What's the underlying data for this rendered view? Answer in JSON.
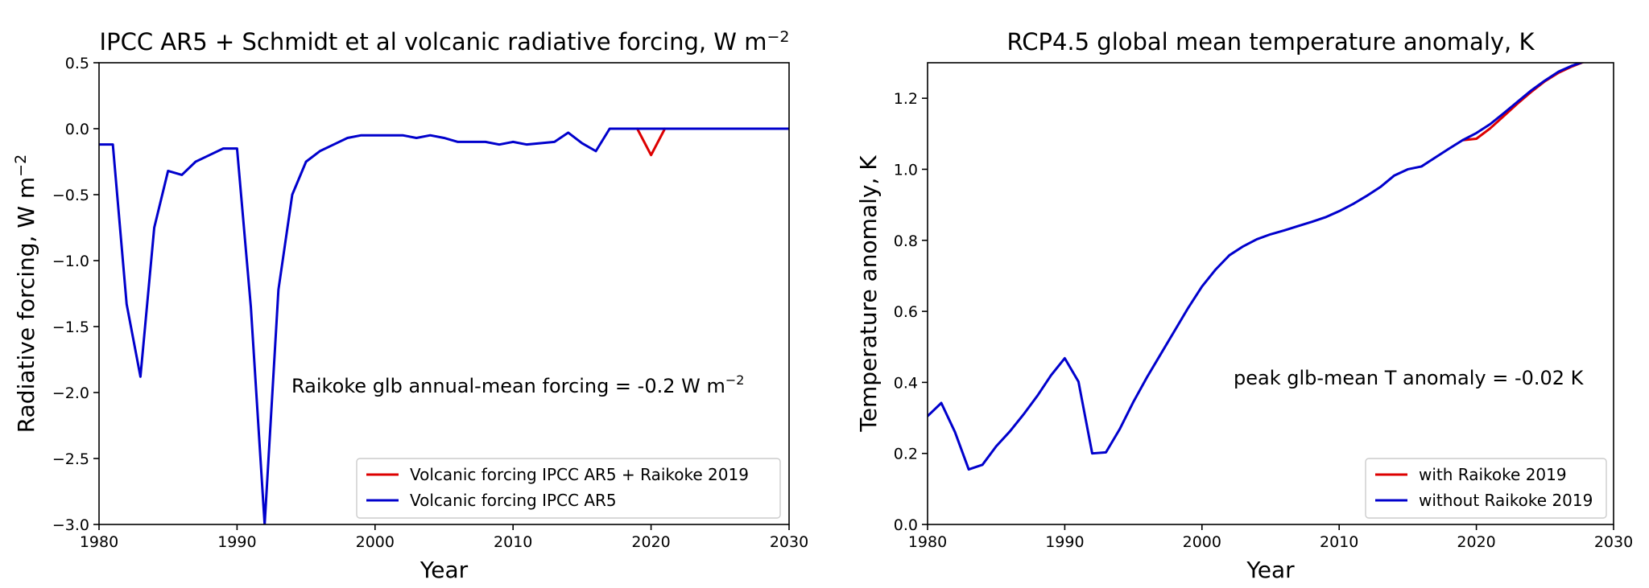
{
  "chart_data": [
    {
      "type": "line",
      "title": "IPCC AR5 + Schmidt et al volcanic radiative forcing, W m",
      "title_sup": "−2",
      "xlabel": "Year",
      "ylabel": "Radiative forcing, W m",
      "ylabel_sup": "−2",
      "xlim": [
        1980,
        2030
      ],
      "ylim": [
        -3.0,
        0.5
      ],
      "xticks": [
        1980,
        1990,
        2000,
        2010,
        2020,
        2030
      ],
      "xtick_labels": [
        "1980",
        "1990",
        "2000",
        "2010",
        "2020",
        "2030"
      ],
      "yticks": [
        -3.0,
        -2.5,
        -2.0,
        -1.5,
        -1.0,
        -0.5,
        0.0,
        0.5
      ],
      "ytick_labels": [
        "−3.0",
        "−2.5",
        "−2.0",
        "−1.5",
        "−1.0",
        "−0.5",
        "0.0",
        "0.5"
      ],
      "annotation": "Raikoke glb annual-mean forcing = -0.2 W m",
      "annotation_sup": "−2",
      "legend_position": "lower-right",
      "series": [
        {
          "name": "Volcanic forcing IPCC AR5 + Raikoke 2019",
          "color": "#dd0000",
          "x": [
            2019,
            2020,
            2021
          ],
          "y": [
            0.0,
            -0.2,
            0.0
          ]
        },
        {
          "name": "Volcanic forcing IPCC AR5",
          "color": "#0000cc",
          "x": [
            1980,
            1981,
            1982,
            1983,
            1984,
            1985,
            1986,
            1987,
            1988,
            1989,
            1990,
            1991,
            1992,
            1993,
            1994,
            1995,
            1996,
            1997,
            1998,
            1999,
            2000,
            2001,
            2002,
            2003,
            2004,
            2005,
            2006,
            2007,
            2008,
            2009,
            2010,
            2011,
            2012,
            2013,
            2014,
            2015,
            2016,
            2017,
            2018,
            2019,
            2020,
            2021,
            2022,
            2023,
            2024,
            2025,
            2026,
            2027,
            2028,
            2029,
            2030
          ],
          "y": [
            -0.12,
            -0.12,
            -1.33,
            -1.88,
            -0.75,
            -0.32,
            -0.35,
            -0.25,
            -0.2,
            -0.15,
            -0.15,
            -1.35,
            -3.0,
            -1.22,
            -0.5,
            -0.25,
            -0.17,
            -0.12,
            -0.07,
            -0.05,
            -0.05,
            -0.05,
            -0.05,
            -0.07,
            -0.05,
            -0.07,
            -0.1,
            -0.1,
            -0.1,
            -0.12,
            -0.1,
            -0.12,
            -0.11,
            -0.1,
            -0.03,
            -0.11,
            -0.17,
            0.0,
            0.0,
            0.0,
            0.0,
            0.0,
            0.0,
            0.0,
            0.0,
            0.0,
            0.0,
            0.0,
            0.0,
            0.0,
            0.0
          ]
        }
      ]
    },
    {
      "type": "line",
      "title": "RCP4.5 global mean temperature anomaly, K",
      "xlabel": "Year",
      "ylabel": "Temperature anomaly, K",
      "xlim": [
        1980,
        2030
      ],
      "ylim": [
        0.0,
        1.3
      ],
      "xticks": [
        1980,
        1990,
        2000,
        2010,
        2020,
        2030
      ],
      "xtick_labels": [
        "1980",
        "1990",
        "2000",
        "2010",
        "2020",
        "2030"
      ],
      "yticks": [
        0.0,
        0.2,
        0.4,
        0.6,
        0.8,
        1.0,
        1.2
      ],
      "ytick_labels": [
        "0.0",
        "0.2",
        "0.4",
        "0.6",
        "0.8",
        "1.0",
        "1.2"
      ],
      "annotation": "peak glb-mean T anomaly = -0.02 K",
      "legend_position": "lower-right",
      "series": [
        {
          "name": "with Raikoke 2019",
          "color": "#dd0000",
          "x": [
            2019,
            2020,
            2021,
            2022,
            2023,
            2024,
            2025,
            2026,
            2027,
            2028
          ],
          "y": [
            1.082,
            1.086,
            1.115,
            1.15,
            1.185,
            1.218,
            1.248,
            1.272,
            1.29,
            1.305
          ]
        },
        {
          "name": "without Raikoke 2019",
          "color": "#0000cc",
          "x": [
            1980,
            1981,
            1982,
            1983,
            1984,
            1985,
            1986,
            1987,
            1988,
            1989,
            1990,
            1991,
            1992,
            1993,
            1994,
            1995,
            1996,
            1997,
            1998,
            1999,
            2000,
            2001,
            2002,
            2003,
            2004,
            2005,
            2006,
            2007,
            2008,
            2009,
            2010,
            2011,
            2012,
            2013,
            2014,
            2015,
            2016,
            2017,
            2018,
            2019,
            2020,
            2021,
            2022,
            2023,
            2024,
            2025,
            2026,
            2027,
            2028
          ],
          "y": [
            0.305,
            0.342,
            0.26,
            0.155,
            0.168,
            0.22,
            0.262,
            0.31,
            0.362,
            0.42,
            0.468,
            0.402,
            0.2,
            0.203,
            0.268,
            0.345,
            0.415,
            0.48,
            0.545,
            0.61,
            0.67,
            0.718,
            0.758,
            0.783,
            0.803,
            0.817,
            0.828,
            0.84,
            0.852,
            0.865,
            0.882,
            0.902,
            0.925,
            0.95,
            0.982,
            1.0,
            1.008,
            1.033,
            1.058,
            1.082,
            1.102,
            1.127,
            1.158,
            1.19,
            1.222,
            1.25,
            1.275,
            1.292,
            1.305
          ]
        }
      ]
    }
  ]
}
